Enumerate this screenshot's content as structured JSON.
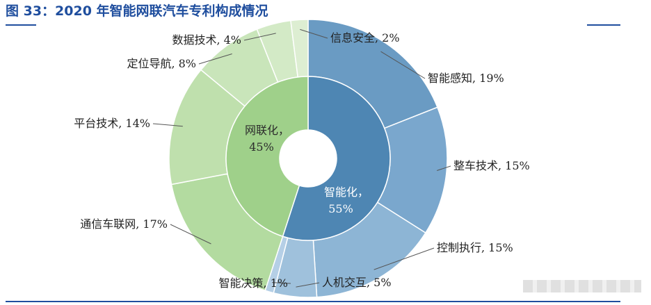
{
  "figure": {
    "title": "图 33：2020 年智能网联汽车专利构成情况"
  },
  "chart_data": {
    "type": "pie",
    "subtype": "nested-donut",
    "start_angle_deg": 0,
    "direction": "clockwise",
    "inner_ring": [
      {
        "name": "智能化",
        "value": 55,
        "label": "智能化，",
        "pct": "55%",
        "color": "#4e86b3"
      },
      {
        "name": "网联化",
        "value": 45,
        "label": "网联化，",
        "pct": "45%",
        "color": "#9fd08a"
      }
    ],
    "outer_ring": [
      {
        "name": "智能感知",
        "value": 19,
        "label": "智能感知, 19%",
        "color": "#6a9bc3",
        "anchor": "left"
      },
      {
        "name": "整车技术",
        "value": 15,
        "label": "整车技术, 15%",
        "color": "#7aa7cd",
        "anchor": "left"
      },
      {
        "name": "控制执行",
        "value": 15,
        "label": "控制执行, 15%",
        "color": "#8db5d5",
        "anchor": "left"
      },
      {
        "name": "人机交互",
        "value": 5,
        "label": "人机交互, 5%",
        "color": "#9fc1dc",
        "anchor": "left"
      },
      {
        "name": "智能决策",
        "value": 1,
        "label": "智能决策, 1%",
        "color": "#b5cfe6",
        "anchor": "right"
      },
      {
        "name": "通信车联网",
        "value": 17,
        "label": "通信车联网, 17%",
        "color": "#b3dba0",
        "anchor": "right"
      },
      {
        "name": "平台技术",
        "value": 14,
        "label": "平台技术, 14%",
        "color": "#bfe0ad",
        "anchor": "right"
      },
      {
        "name": "定位导航",
        "value": 8,
        "label": "定位导航, 8%",
        "color": "#c9e5ba",
        "anchor": "right"
      },
      {
        "name": "数据技术",
        "value": 4,
        "label": "数据技术, 4%",
        "color": "#d3eac6",
        "anchor": "right"
      },
      {
        "name": "信息安全",
        "value": 2,
        "label": "信息安全, 2%",
        "color": "#ddeed2",
        "anchor": "left"
      }
    ]
  }
}
